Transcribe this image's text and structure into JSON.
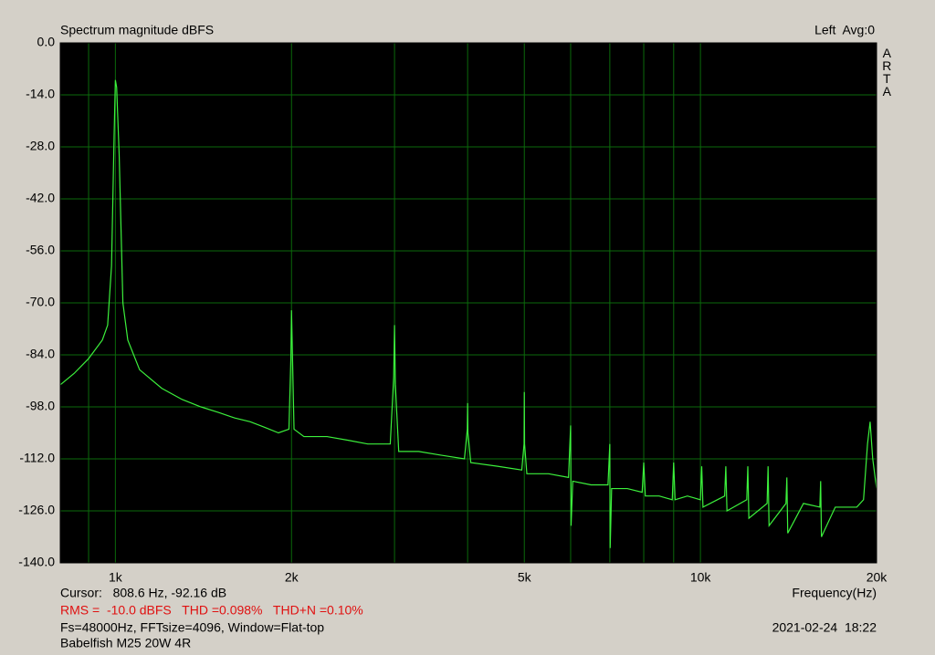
{
  "chart_data": {
    "type": "line",
    "title": "Spectrum magnitude dBFS",
    "channel_label": "Left  Avg:0",
    "brand": "ARTA",
    "x_label": "Frequency(Hz)",
    "cursor": "Cursor:   808.6 Hz, -92.16 dB",
    "measurement": "RMS =  -10.0 dBFS   THD =0.098%   THD+N =0.10%",
    "settings": "Fs=48000Hz, FFTsize=4096, Window=Flat-top",
    "device": "Babelfish M25 20W 4R",
    "timestamp": "2021-02-24  18:22",
    "log_x": true,
    "grid": true,
    "xlim": [
      805,
      20000
    ],
    "ylim": [
      -140,
      0
    ],
    "xticks": [
      {
        "value": 1000,
        "label": "1k"
      },
      {
        "value": 2000,
        "label": "2k"
      },
      {
        "value": 5000,
        "label": "5k"
      },
      {
        "value": 10000,
        "label": "10k"
      },
      {
        "value": 20000,
        "label": "20k"
      }
    ],
    "xminor": [
      900,
      3000,
      4000,
      6000,
      7000,
      8000,
      9000
    ],
    "yticks": [
      {
        "value": 0,
        "label": "0.0"
      },
      {
        "value": -14,
        "label": "-14.0"
      },
      {
        "value": -28,
        "label": "-28.0"
      },
      {
        "value": -42,
        "label": "-42.0"
      },
      {
        "value": -56,
        "label": "-56.0"
      },
      {
        "value": -70,
        "label": "-70.0"
      },
      {
        "value": -84,
        "label": "-84.0"
      },
      {
        "value": -98,
        "label": "-98.0"
      },
      {
        "value": -112,
        "label": "-112.0"
      },
      {
        "value": -126,
        "label": "-126.0"
      },
      {
        "value": -140,
        "label": "-140.0"
      }
    ],
    "series": [
      {
        "name": "Left",
        "color": "#3cf03c",
        "x": [
          806,
          850,
          900,
          950,
          970,
          985,
          995,
          1000,
          1005,
          1015,
          1030,
          1050,
          1100,
          1200,
          1300,
          1400,
          1500,
          1600,
          1700,
          1800,
          1900,
          1980,
          1995,
          2000,
          2005,
          2020,
          2100,
          2300,
          2500,
          2700,
          2950,
          2990,
          3000,
          3010,
          3050,
          3300,
          3600,
          3950,
          3995,
          4000,
          4005,
          4050,
          4500,
          4950,
          4995,
          5000,
          5005,
          5050,
          5500,
          5950,
          6000,
          6010,
          6050,
          6500,
          6950,
          7000,
          7010,
          7050,
          7500,
          7950,
          8000,
          8050,
          8500,
          8950,
          9000,
          9050,
          9500,
          10000,
          10050,
          10100,
          11000,
          11050,
          11100,
          12000,
          12050,
          12100,
          13000,
          13050,
          13100,
          14000,
          14050,
          14100,
          15000,
          16000,
          16050,
          16100,
          17000,
          18000,
          18500,
          19000,
          19300,
          19500,
          19700,
          20000
        ],
        "values": [
          -92,
          -89,
          -85,
          -80,
          -76,
          -60,
          -25,
          -10,
          -12,
          -30,
          -70,
          -80,
          -88,
          -93,
          -96,
          -98,
          -99.5,
          -101,
          -102,
          -103.5,
          -105,
          -104,
          -85,
          -72,
          -80,
          -104,
          -106,
          -106,
          -107,
          -108,
          -108,
          -90,
          -76,
          -92,
          -110,
          -110,
          -111,
          -112,
          -104,
          -97,
          -105,
          -113,
          -114,
          -115,
          -108,
          -94,
          -108,
          -116,
          -116,
          -117,
          -103,
          -130,
          -118,
          -119,
          -119,
          -108,
          -136,
          -120,
          -120,
          -121,
          -113,
          -122,
          -122,
          -123,
          -113,
          -123,
          -122,
          -123,
          -114,
          -125,
          -122,
          -114,
          -126,
          -123,
          -114,
          -128,
          -124,
          -114,
          -130,
          -124,
          -117,
          -132,
          -124,
          -125,
          -118,
          -133,
          -125,
          -125,
          -125,
          -123,
          -108,
          -102,
          -112,
          -120
        ]
      }
    ]
  }
}
